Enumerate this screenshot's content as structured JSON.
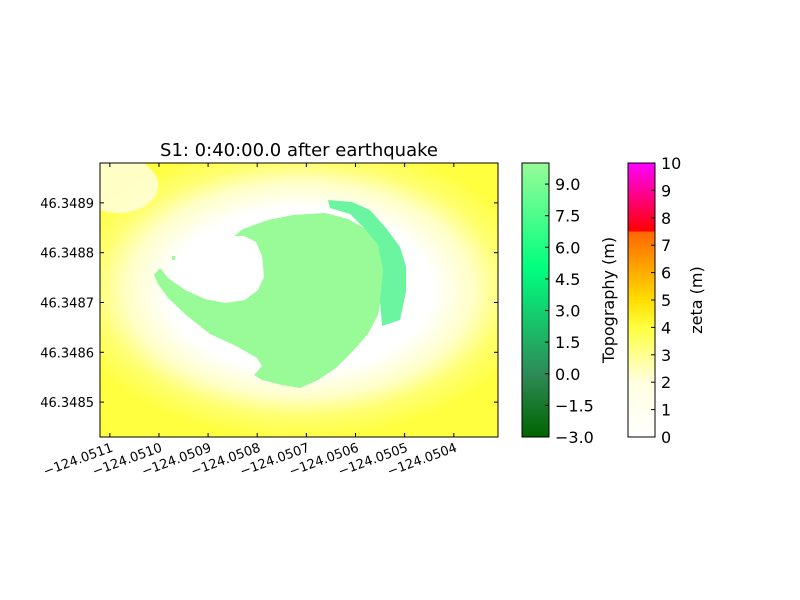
{
  "chart_data": {
    "type": "heatmap",
    "title": "S1: 0:40:00.0 after earthquake",
    "xlabel": "",
    "ylabel": "",
    "xlim": [
      -124.05112,
      -124.05031
    ],
    "ylim": [
      46.34843,
      46.34898
    ],
    "x_ticks": [
      -124.0511,
      -124.051,
      -124.0509,
      -124.0508,
      -124.0507,
      -124.0506,
      -124.0505,
      -124.0504
    ],
    "x_tick_labels": [
      "−124.0511",
      "−124.0510",
      "−124.0509",
      "−124.0508",
      "−124.0507",
      "−124.0506",
      "−124.0505",
      "−124.0504"
    ],
    "y_ticks": [
      46.3485,
      46.3486,
      46.3487,
      46.3488,
      46.3489
    ],
    "y_tick_labels": [
      "46.3485",
      "46.3486",
      "46.3487",
      "46.3488",
      "46.3489"
    ],
    "grid": false,
    "colorbars": [
      {
        "label": "Topography (m)",
        "range": [
          -3.0,
          10.0
        ],
        "ticks": [
          -3.0,
          -1.5,
          0.0,
          1.5,
          3.0,
          4.5,
          6.0,
          7.5,
          9.0
        ],
        "tick_labels": [
          "−3.0",
          "−1.5",
          "0.0",
          "1.5",
          "3.0",
          "4.5",
          "6.0",
          "7.5",
          "9.0"
        ],
        "color_stops": [
          {
            "value": -3.0,
            "color": "#006400"
          },
          {
            "value": 0.0,
            "color": "#2e8b57"
          },
          {
            "value": 5.0,
            "color": "#00ff7f"
          },
          {
            "value": 10.0,
            "color": "#98fb98"
          }
        ]
      },
      {
        "label": "zeta (m)",
        "range": [
          0,
          10
        ],
        "ticks": [
          0,
          1,
          2,
          3,
          4,
          5,
          6,
          7,
          8,
          9,
          10
        ],
        "tick_labels": [
          "0",
          "1",
          "2",
          "3",
          "4",
          "5",
          "6",
          "7",
          "8",
          "9",
          "10"
        ],
        "color_stops": [
          {
            "value": 0,
            "color": "#ffffff"
          },
          {
            "value": 2,
            "color": "#ffffe0"
          },
          {
            "value": 4,
            "color": "#ffff40"
          },
          {
            "value": 5,
            "color": "#ffdd00"
          },
          {
            "value": 7.5,
            "color": "#ff6600"
          },
          {
            "value": 7.5,
            "color": "#ff0000"
          },
          {
            "value": 8.5,
            "color": "#ff0066"
          },
          {
            "value": 10,
            "color": "#ff00ff"
          }
        ]
      }
    ],
    "colors": {
      "land": "#98fb98",
      "land_ridge": "#6cf5a0",
      "deep_water": "#ffff40",
      "shallow_water": "#ffffff"
    }
  }
}
